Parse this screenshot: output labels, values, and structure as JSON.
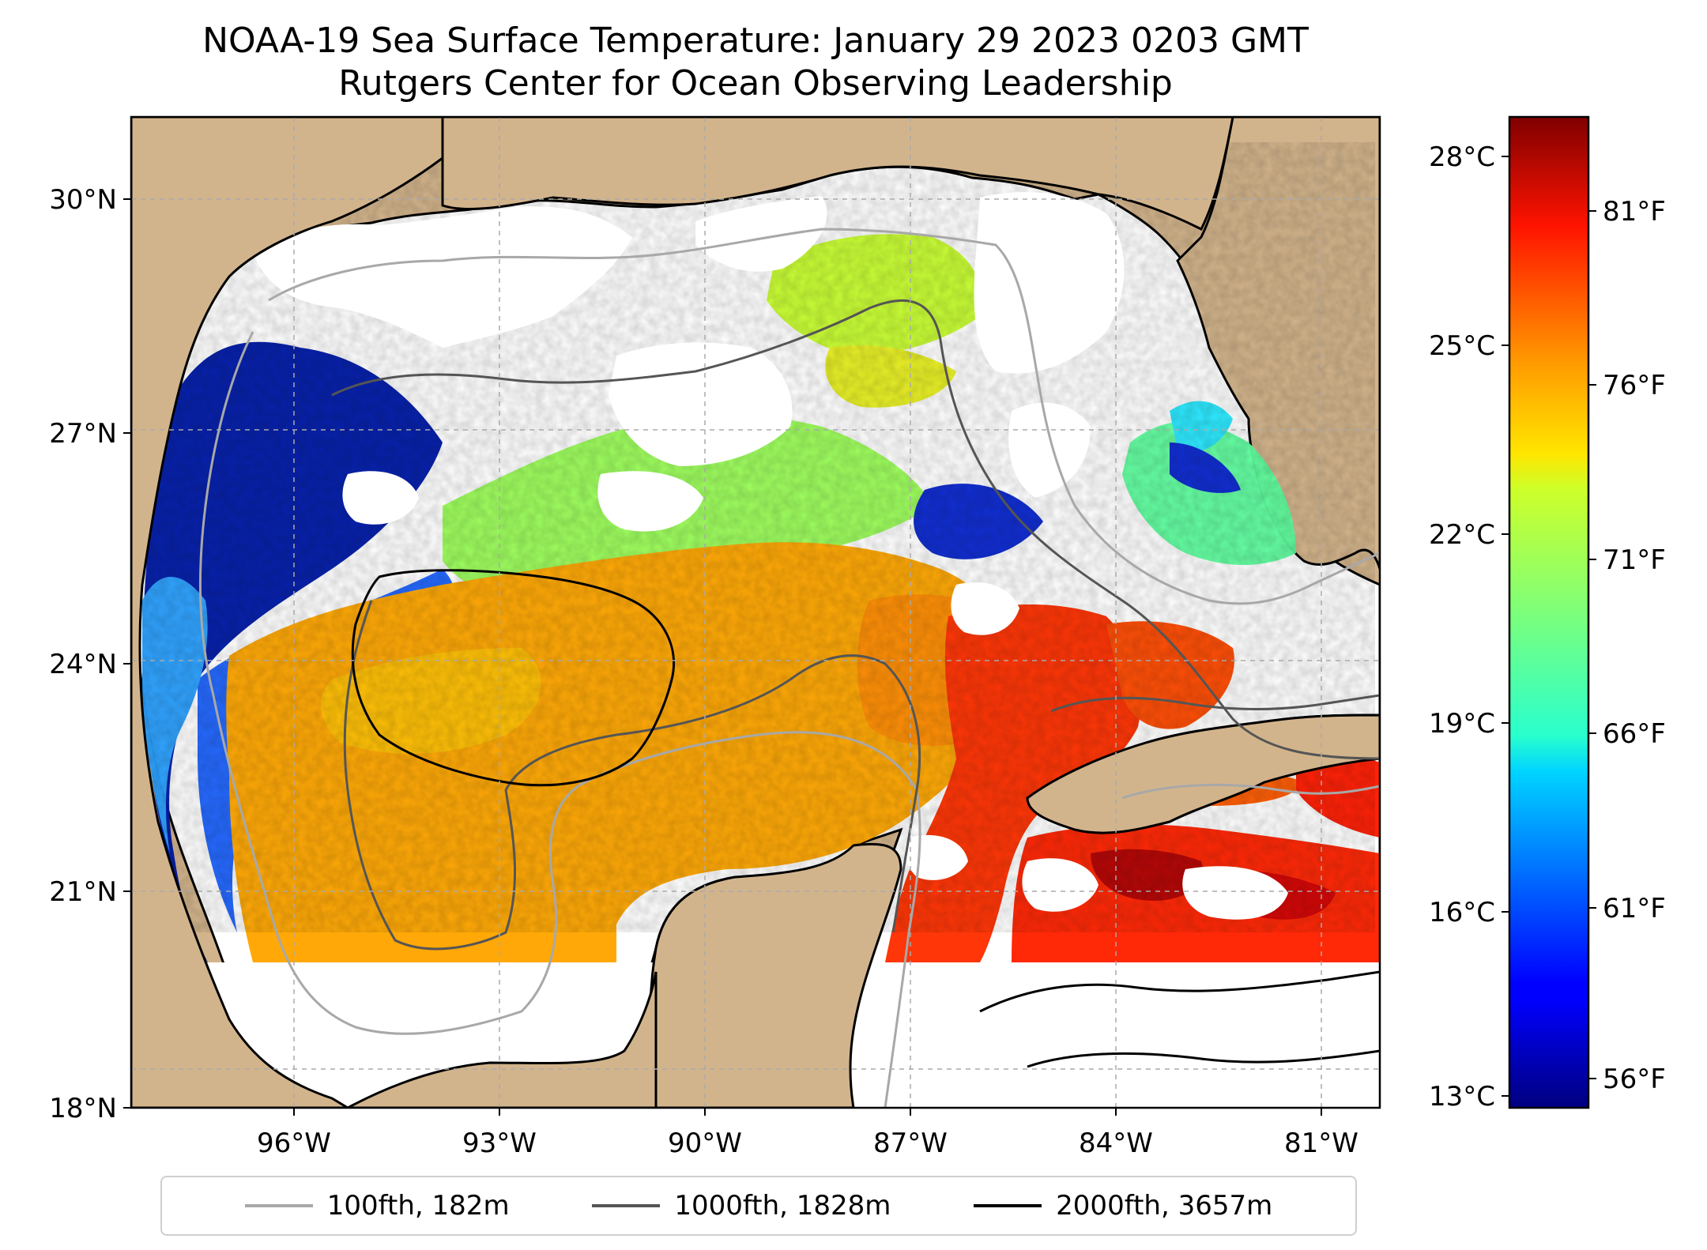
{
  "title": "NOAA-19 Sea Surface Temperature: January 29 2023 0203 GMT",
  "subtitle": "Rutgers Center for Ocean Observing Leadership",
  "map": {
    "extent": {
      "lon": [
        -98.0,
        -80.2
      ],
      "lat": [
        18.0,
        31.0
      ]
    },
    "lat_ticks": [
      {
        "value": 30,
        "label": "30°N"
      },
      {
        "value": 27,
        "label": "27°N"
      },
      {
        "value": 24,
        "label": "24°N"
      },
      {
        "value": 21,
        "label": "21°N"
      },
      {
        "value": 18,
        "label": "18°N"
      }
    ],
    "lon_ticks": [
      {
        "value": -96,
        "label": "96°W"
      },
      {
        "value": -93,
        "label": "93°W"
      },
      {
        "value": -90,
        "label": "90°W"
      },
      {
        "value": -87,
        "label": "87°W"
      },
      {
        "value": -84,
        "label": "84°W"
      },
      {
        "value": -81,
        "label": "81°W"
      }
    ],
    "grid": true,
    "colors": {
      "land": "#d2b48c",
      "ocean_nodata": "#ffffff",
      "coast": "#000000",
      "grid": "#aaaaaa"
    }
  },
  "colorbar": {
    "colormap": "jet",
    "range_c": [
      12.8,
      28.8
    ],
    "celsius_ticks": [
      {
        "value": 28,
        "label": "28°C"
      },
      {
        "value": 25,
        "label": "25°C"
      },
      {
        "value": 22,
        "label": "22°C"
      },
      {
        "value": 19,
        "label": "19°C"
      },
      {
        "value": 16,
        "label": "16°C"
      },
      {
        "value": 13,
        "label": "13°C"
      }
    ],
    "fahrenheit_ticks": [
      {
        "value": 81,
        "label": "81°F"
      },
      {
        "value": 76,
        "label": "76°F"
      },
      {
        "value": 71,
        "label": "71°F"
      },
      {
        "value": 66,
        "label": "66°F"
      },
      {
        "value": 61,
        "label": "61°F"
      },
      {
        "value": 56,
        "label": "56°F"
      }
    ]
  },
  "legend": {
    "placement": "bottom-center",
    "items": [
      {
        "label": "100fth, 182m",
        "color": "#a8a8a8"
      },
      {
        "label": "1000fth, 1828m",
        "color": "#555555"
      },
      {
        "label": "2000fth, 3657m",
        "color": "#000000"
      }
    ]
  }
}
